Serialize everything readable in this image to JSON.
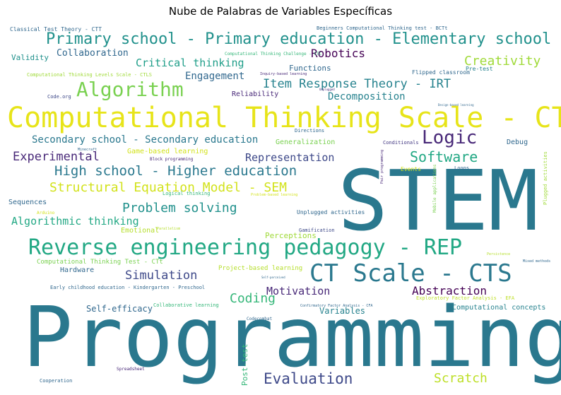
{
  "chart_data": {
    "type": "wordcloud",
    "title": "Nube de Palabras de Variables Específicas",
    "words": [
      {
        "text": "Programming",
        "color": "#2a788e"
      },
      {
        "text": "STEM",
        "color": "#2a788e"
      },
      {
        "text": "Computational Thinking Scale - CTS",
        "color": "#e7e419"
      },
      {
        "text": "Reverse engineering pedagogy - REP",
        "color": "#22a884"
      },
      {
        "text": "CT Scale - CTS",
        "color": "#2a788e"
      },
      {
        "text": "Primary school - Primary education - Elementary school",
        "color": "#21918c"
      },
      {
        "text": "Algorithm",
        "color": "#7ad151"
      },
      {
        "text": "Logic",
        "color": "#482878"
      },
      {
        "text": "High school - Higher education",
        "color": "#2a788e"
      },
      {
        "text": "Structural Equation Model - SEM",
        "color": "#d2e21b"
      },
      {
        "text": "Software",
        "color": "#22a884"
      },
      {
        "text": "Item Response Theory - IRT",
        "color": "#26828e"
      },
      {
        "text": "Evaluation",
        "color": "#3e4989"
      },
      {
        "text": "Scratch",
        "color": "#bddf26"
      },
      {
        "text": "Creativity",
        "color": "#a0da39"
      },
      {
        "text": "Robotics",
        "color": "#440154"
      },
      {
        "text": "Experimental",
        "color": "#482878"
      },
      {
        "text": "Problem solving",
        "color": "#21918c"
      },
      {
        "text": "Algorithmic thinking",
        "color": "#22a884"
      },
      {
        "text": "Simulation",
        "color": "#3e4989"
      },
      {
        "text": "Coding",
        "color": "#35b779"
      },
      {
        "text": "Motivation",
        "color": "#482878"
      },
      {
        "text": "Abstraction",
        "color": "#440154"
      },
      {
        "text": "Secondary school - Secondary education",
        "color": "#2a788e"
      },
      {
        "text": "Critical thinking",
        "color": "#1f9e89"
      },
      {
        "text": "Engagement",
        "color": "#31688e"
      },
      {
        "text": "Decomposition",
        "color": "#26828e"
      },
      {
        "text": "Representation",
        "color": "#3e4989"
      },
      {
        "text": "Collaboration",
        "color": "#31688e"
      },
      {
        "text": "Self-efficacy",
        "color": "#31688e"
      },
      {
        "text": "Functions",
        "color": "#31688e"
      },
      {
        "text": "Validity",
        "color": "#21918c"
      },
      {
        "text": "Reliability",
        "color": "#482878"
      },
      {
        "text": "Variables",
        "color": "#26828e"
      },
      {
        "text": "Hardware",
        "color": "#31688e"
      },
      {
        "text": "Perceptions",
        "color": "#a0da39"
      },
      {
        "text": "Emotional",
        "color": "#b5de2b"
      },
      {
        "text": "Generalization",
        "color": "#7ad151"
      },
      {
        "text": "Computational concepts",
        "color": "#26828e"
      },
      {
        "text": "Game-based learning",
        "color": "#d2e21b"
      },
      {
        "text": "Post-test",
        "color": "#35b779"
      },
      {
        "text": "Sequences",
        "color": "#31688e"
      },
      {
        "text": "Debug",
        "color": "#31688e"
      },
      {
        "text": "Classical Test Theory - CTT",
        "color": "#31688e"
      },
      {
        "text": "Beginners Computational Thinking test - BCTt",
        "color": "#31688e"
      },
      {
        "text": "Computational Thinking Levels Scale - CTLS",
        "color": "#a0da39"
      },
      {
        "text": "Computational Thinking Test - CTt",
        "color": "#7ad151"
      },
      {
        "text": "Computational Thinking Challenge - CTC",
        "color": "#35b779"
      },
      {
        "text": "Project-based learning",
        "color": "#b5de2b"
      },
      {
        "text": "Early childhood education - Kindergarten - Preschool",
        "color": "#31688e"
      },
      {
        "text": "Collaborative learning",
        "color": "#35b779"
      },
      {
        "text": "Unplugged activities",
        "color": "#31688e"
      },
      {
        "text": "Gamification",
        "color": "#3e4989"
      },
      {
        "text": "Conditionals",
        "color": "#443983"
      },
      {
        "text": "Events",
        "color": "#d2e21b"
      },
      {
        "text": "Loops",
        "color": "#31688e"
      },
      {
        "text": "Directions",
        "color": "#31688e"
      },
      {
        "text": "Flipped classroom",
        "color": "#31688e"
      },
      {
        "text": "Pre-test",
        "color": "#26828e"
      },
      {
        "text": "Inquiry-based learning",
        "color": "#482878"
      },
      {
        "text": "Code.org",
        "color": "#3e4989"
      },
      {
        "text": "Cooperation",
        "color": "#31688e"
      },
      {
        "text": "Spreadsheet",
        "color": "#482878"
      },
      {
        "text": "Codecombat",
        "color": "#31688e"
      },
      {
        "text": "Arduino",
        "color": "#d2e21b"
      },
      {
        "text": "Logical thinking",
        "color": "#35b779"
      },
      {
        "text": "Block programming",
        "color": "#482878"
      },
      {
        "text": "Minecraft",
        "color": "#31688e"
      },
      {
        "text": "Parallelism",
        "color": "#b5de2b"
      },
      {
        "text": "Exploratory Factor Analysis - EFA",
        "color": "#bddf26"
      },
      {
        "text": "Confirmatory Factor Analysis - CFA",
        "color": "#31688e"
      },
      {
        "text": "Plugged activities",
        "color": "#a0da39"
      },
      {
        "text": "Mobile applications",
        "color": "#7ad151"
      },
      {
        "text": "Pair programming",
        "color": "#482878"
      },
      {
        "text": "Mixed methods",
        "color": "#31688e"
      },
      {
        "text": "Problem-based learning",
        "color": "#d2e21b"
      },
      {
        "text": "Self-perceived",
        "color": "#31688e"
      },
      {
        "text": "Persistence",
        "color": "#b5de2b"
      },
      {
        "text": "Design-based learning",
        "color": "#31688e"
      },
      {
        "text": "Unplugged",
        "color": "#482878"
      }
    ]
  }
}
